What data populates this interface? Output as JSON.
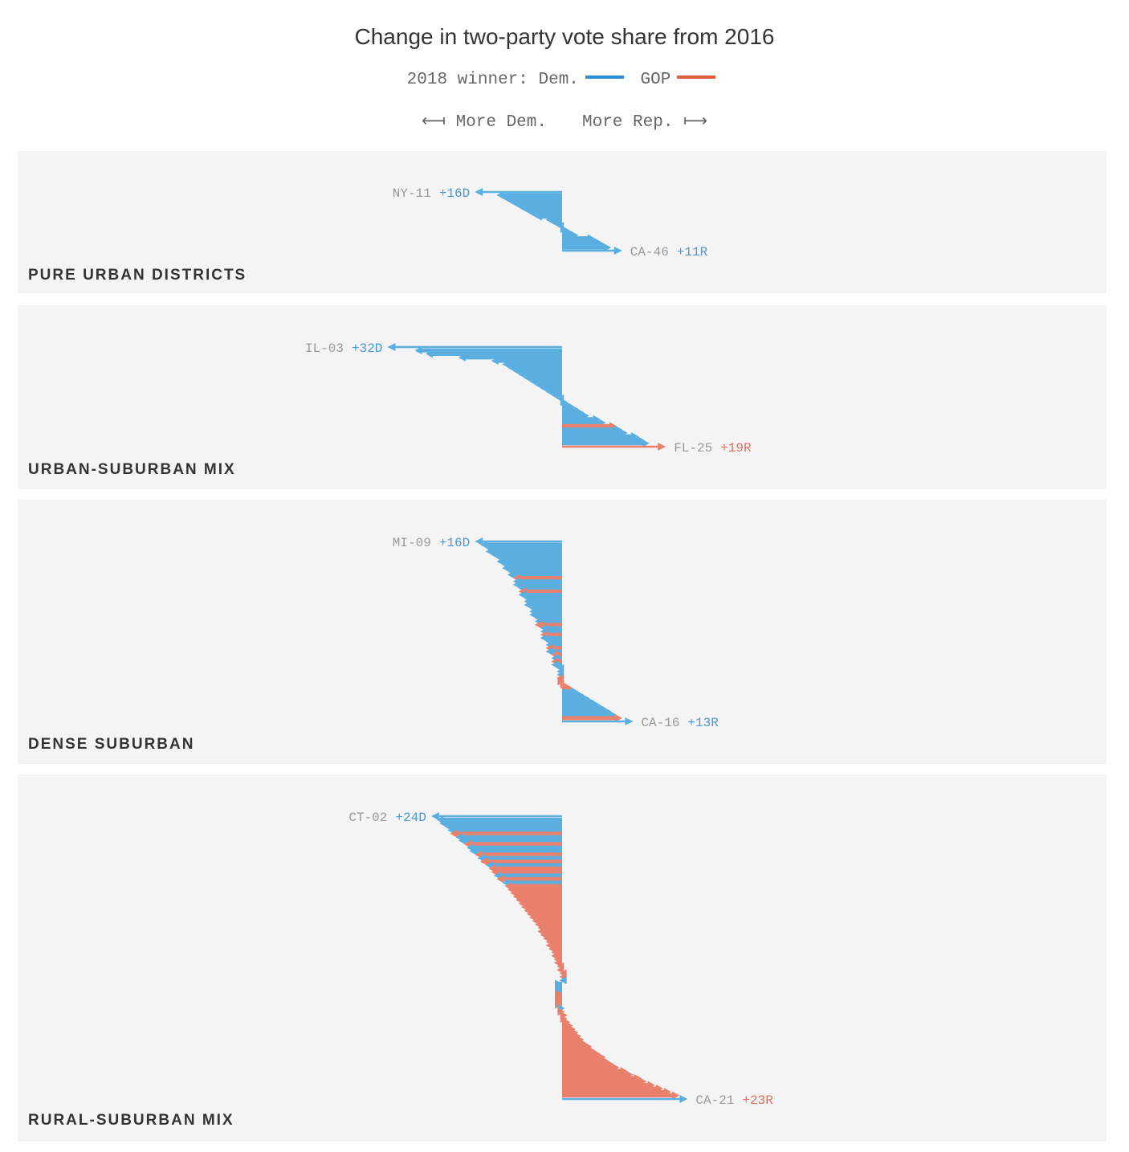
{
  "title": "Change in two-party vote share from 2016",
  "legend": {
    "prefix": "2018 winner:",
    "dem": "Dem.",
    "gop": "GOP"
  },
  "direction": {
    "left": "⟻ More Dem.",
    "right": "More Rep. ⟼"
  },
  "colors": {
    "dem": "#5aaee0",
    "gop": "#e8806c",
    "dem_text": "#4a9ad4",
    "gop_text": "#e07060"
  },
  "chart_data": [
    {
      "type": "arrow-stack",
      "title": "PURE URBAN DISTRICTS",
      "x_unit": "percentage points (negative = more Dem.)",
      "top_label": {
        "district": "NY-11",
        "value": "+16D"
      },
      "bottom_label": {
        "district": "CA-46",
        "value": "+11R"
      },
      "top_winner": "dem",
      "bottom_winner": "dem",
      "min_shift": -16,
      "max_shift": 11,
      "series": [
        {
          "name": "Dem.",
          "shifts": [
            -16,
            -12,
            -11,
            -10,
            -9,
            -8,
            -7,
            -6,
            -5,
            -3,
            -2,
            -1,
            1,
            2,
            3,
            6,
            7,
            8,
            9,
            11
          ],
          "winners": "DDDDDDDDDDDDDDDDDDDD"
        }
      ]
    },
    {
      "type": "arrow-stack",
      "title": "URBAN-SUBURBAN MIX",
      "top_label": {
        "district": "IL-03",
        "value": "+32D"
      },
      "bottom_label": {
        "district": "FL-25",
        "value": "+19R"
      },
      "top_winner": "dem",
      "bottom_winner": "gop",
      "min_shift": -32,
      "max_shift": 19,
      "series": [
        {
          "name": "Dem.",
          "shifts": [
            -32,
            -27,
            -25,
            -19,
            -13,
            -11,
            -10,
            -9,
            -8,
            -7,
            -6,
            -5,
            -4,
            -3,
            -2,
            -1,
            1,
            2,
            3,
            4,
            5,
            7,
            8,
            10,
            11,
            12,
            14,
            15,
            16,
            19
          ],
          "winners": "DDDDDDDDDDDDDDDDDDDDDDDRDDDDDR"
        }
      ]
    },
    {
      "type": "arrow-stack",
      "title": "DENSE SUBURBAN",
      "top_label": {
        "district": "MI-09",
        "value": "+16D"
      },
      "bottom_label": {
        "district": "CA-16",
        "value": "+13R"
      },
      "top_winner": "dem",
      "bottom_winner": "dem",
      "min_shift": -16,
      "max_shift": 13,
      "series": [
        {
          "name": "Dem.",
          "shifts": [
            -16,
            -15,
            -14,
            -14,
            -13,
            -12,
            -12,
            -11,
            -11,
            -10,
            -10,
            -9,
            -9,
            -9,
            -8,
            -8,
            -8,
            -7,
            -7,
            -7,
            -6,
            -6,
            -6,
            -5,
            -5,
            -5,
            -4,
            -4,
            -4,
            -4,
            -3,
            -3,
            -3,
            -3,
            -2,
            -2,
            -2,
            -2,
            -1,
            -1,
            -1,
            -1,
            0.5,
            1,
            2,
            3,
            4,
            5,
            6,
            7,
            8,
            9,
            10,
            11,
            13
          ],
          "winners": "DDDDDDDDDDDRDDDRDDDDDDDDDRDDRDDDRDRDRDDDDRRRRDDDDDDDDRD"
        }
      ]
    },
    {
      "type": "arrow-stack",
      "title": "RURAL-SUBURBAN MIX",
      "top_label": {
        "district": "CT-02",
        "value": "+24D"
      },
      "bottom_label": {
        "district": "CA-21",
        "value": "+23R"
      },
      "top_winner": "dem",
      "bottom_winner": "gop",
      "min_shift": -24,
      "max_shift": 23,
      "n": 82,
      "top_winner_pattern": "DDDDDRDDRDDRDRDRRDRDRRRRRRRRRRRRRRRRRRRRRRRRRRRDDDDRRRRDRRRRRRRRRRRRRRRRRRRRRRRRR"
    }
  ]
}
